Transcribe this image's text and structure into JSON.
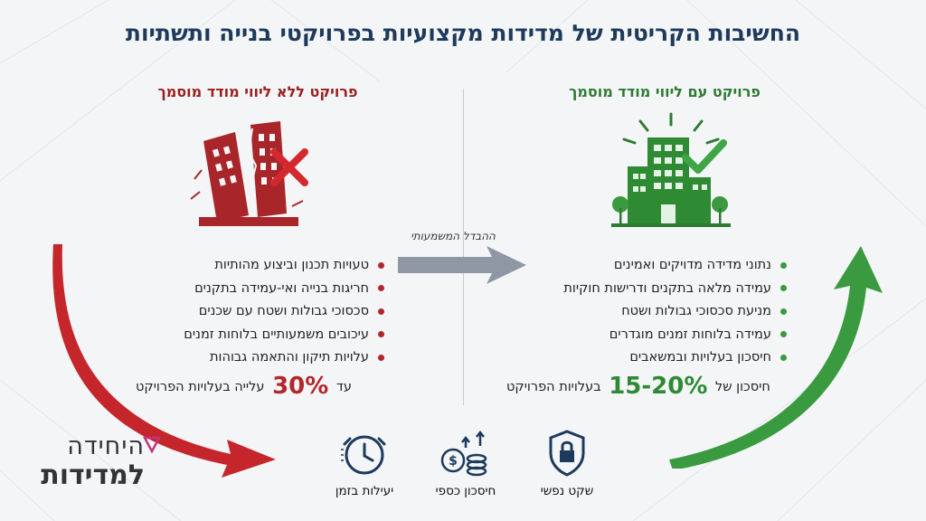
{
  "title": "החשיבות הקריטית של מדידות מקצועיות בפרויקטי בנייה ותשתיות",
  "left": {
    "heading": "פרויקט ללא ליווי מודד מוסמך",
    "icon": "collapsing-building-icon",
    "items": [
      "טעויות תכנון וביצוע מהותיות",
      "חריגות בנייה ואי-עמידה בתקנים",
      "סכסוכי גבולות ושטח עם שכנים",
      "עיכובים משמעותיים בלוחות זמנים",
      "עלויות תיקון והתאמה גבוהות"
    ],
    "summary_prefix": "עד",
    "summary_value": "30%",
    "summary_suffix": "עלייה בעלויות הפרויקט",
    "accent": "#b3262a"
  },
  "right": {
    "heading": "פרויקט עם ליווי מודד מוסמך",
    "icon": "approved-building-icon",
    "items": [
      "נתוני מדידה מדויקים ואמינים",
      "עמידה מלאה בתקנים ודרישות חוקיות",
      "מניעת סכסוכי גבולות ושטח",
      "עמידה בלוחות זמנים מוגדרים",
      "חיסכון בעלויות ובמשאבים"
    ],
    "summary_prefix": "חיסכון של",
    "summary_value": "15-20%",
    "summary_suffix": "בעלויות הפרויקט",
    "accent": "#2e8a33"
  },
  "middle_label": "ההבדל המשמעותי",
  "bottom_items": [
    {
      "label": "שקט נפשי",
      "icon": "shield-lock-icon"
    },
    {
      "label": "חיסכון כספי",
      "icon": "coins-growth-icon"
    },
    {
      "label": "יעילות בזמן",
      "icon": "clock-icon"
    }
  ],
  "logo": {
    "line1": "היחידה",
    "line2": "למדידות"
  }
}
